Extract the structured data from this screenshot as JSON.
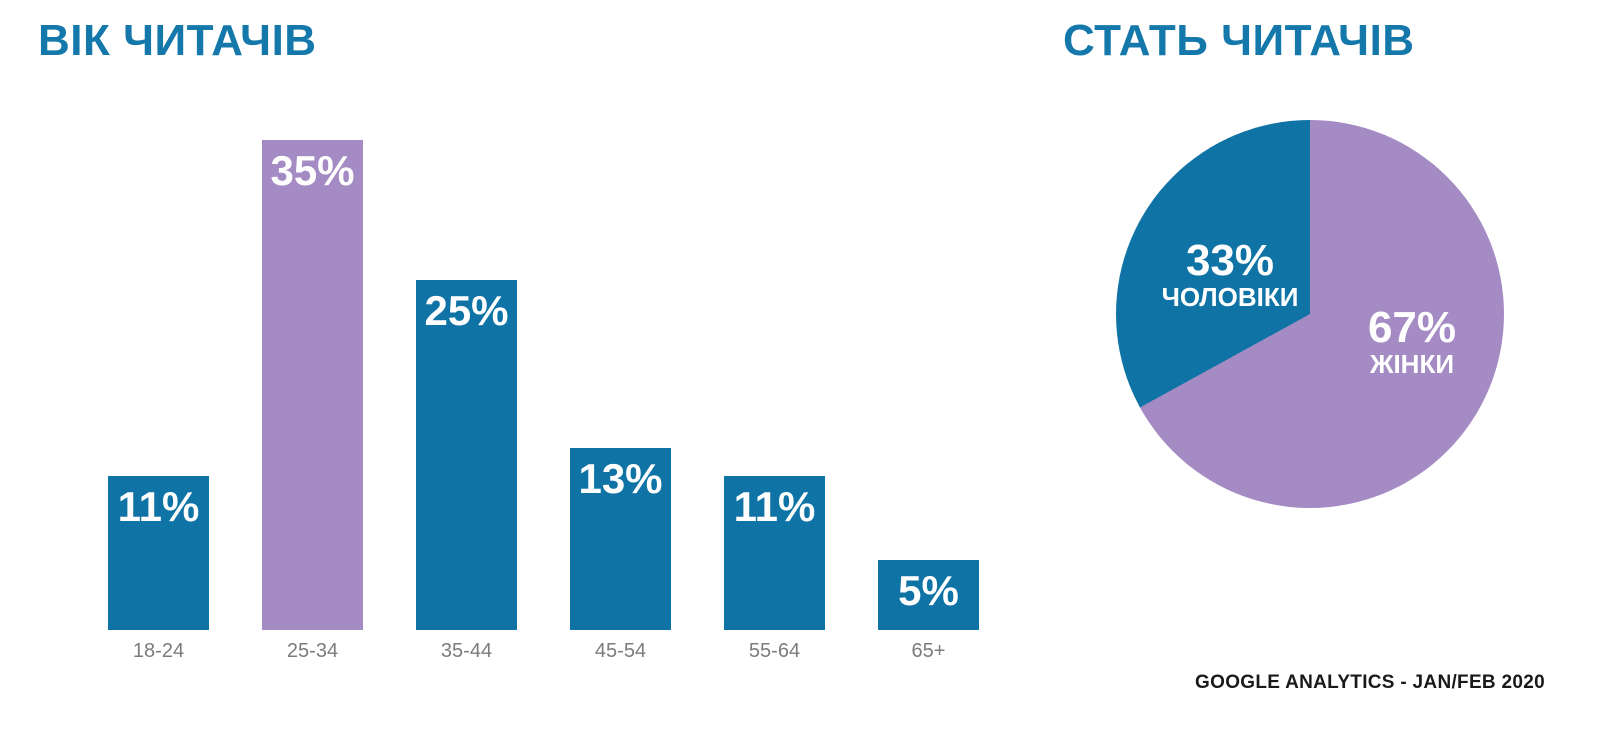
{
  "chart_data": [
    {
      "type": "bar",
      "title": "ВІК ЧИТАЧІВ",
      "categories": [
        "18-24",
        "25-34",
        "35-44",
        "45-54",
        "55-64",
        "65+"
      ],
      "values": [
        11,
        35,
        25,
        13,
        11,
        5
      ],
      "unit": "%",
      "value_labels": [
        "11%",
        "35%",
        "25%",
        "13%",
        "11%",
        "5%"
      ],
      "highlight_index": 1,
      "colors": {
        "bar": "#0f74a5",
        "highlight_bar": "#a58bc3",
        "value_label": "#ffffff",
        "category_label": "#7c7c7e"
      },
      "ylim": [
        0,
        35
      ],
      "grid": false,
      "axes_visible": false,
      "value_label_position": "inside-top",
      "category_label_position": "below-bar"
    },
    {
      "type": "pie",
      "title": "СТАТЬ ЧИТАЧІВ",
      "slices": [
        {
          "label": "ЖІНКИ",
          "pct_label": "67%",
          "value": 67,
          "color": "#a58bc3",
          "label_center": {
            "x": 296,
            "y": 224
          }
        },
        {
          "label": "ЧОЛОВІКИ",
          "pct_label": "33%",
          "value": 33,
          "color": "#0f74a5",
          "label_center": {
            "x": 114,
            "y": 157
          }
        }
      ],
      "start_angle_deg": 0,
      "direction": "clockwise",
      "label_color": "#ffffff",
      "legend_position": "labels inside slices"
    }
  ],
  "footer": {
    "source_label": "GOOGLE ANALYTICS - JAN/FEB 2020"
  },
  "theme": {
    "background": "#ffffff",
    "title_color": "#1478ab",
    "accent_blue": "#0f74a5",
    "accent_purple": "#a58bc3"
  }
}
